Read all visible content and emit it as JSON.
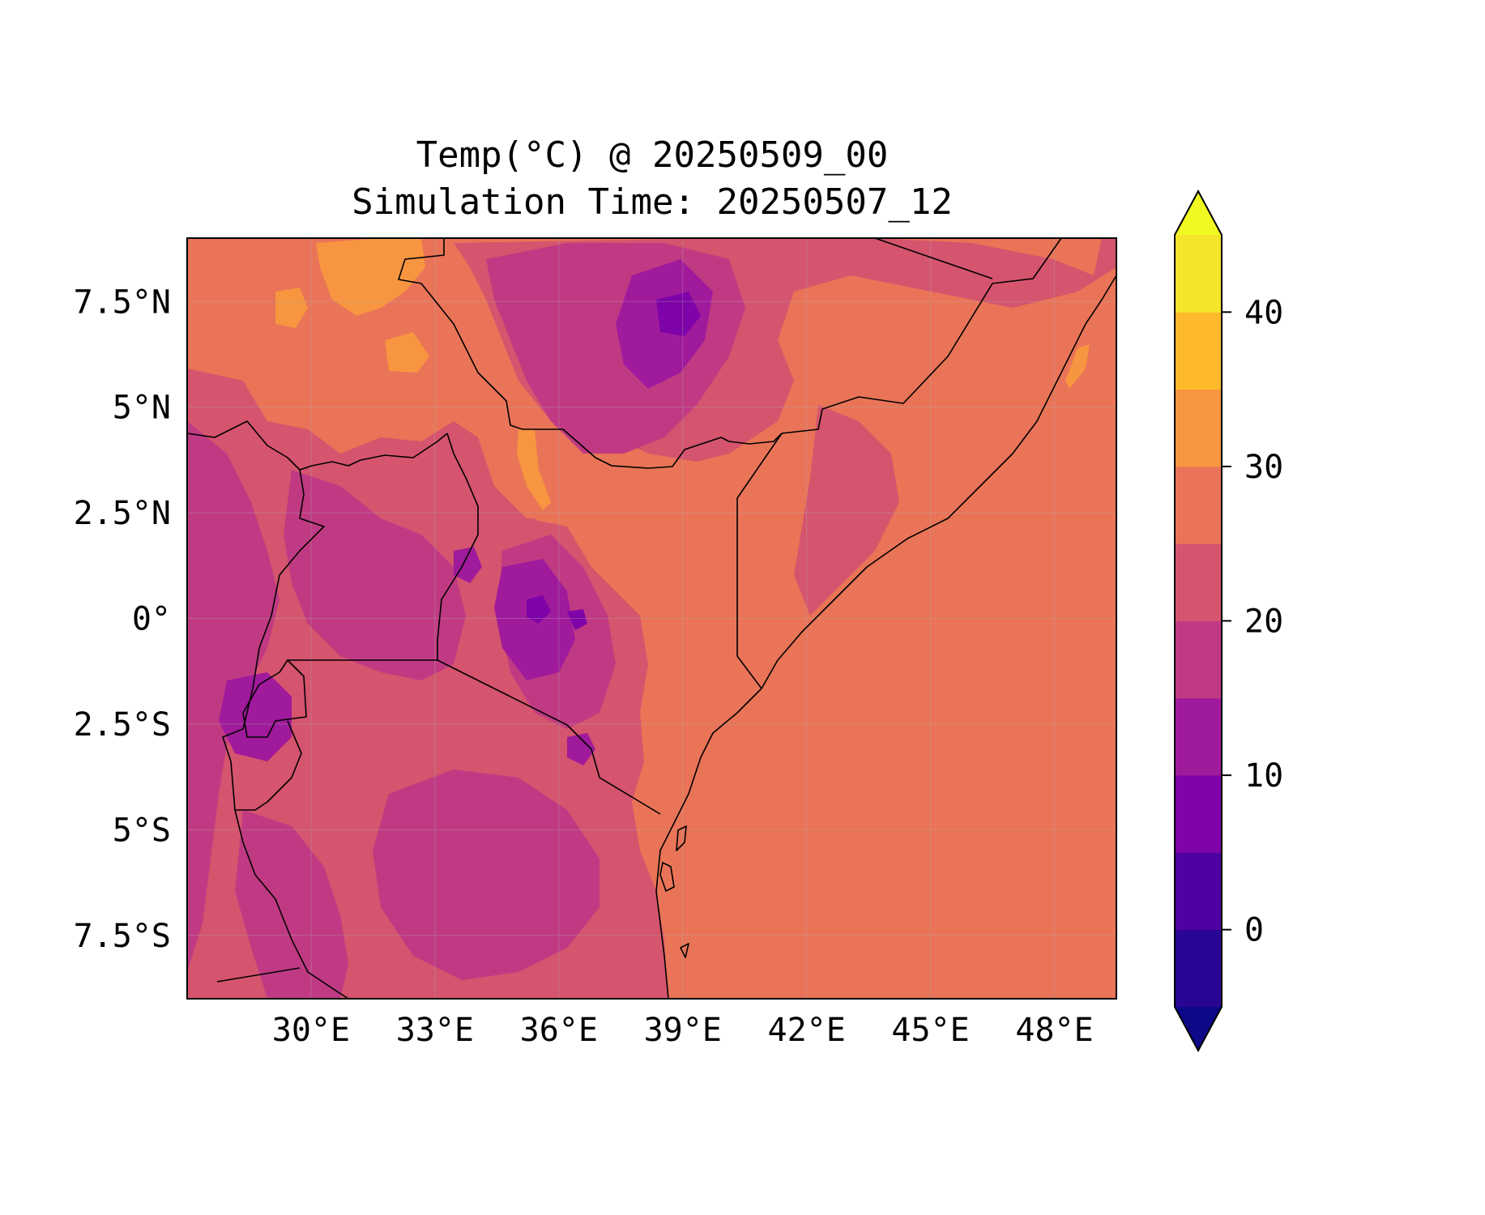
{
  "figure": {
    "title_line1": "Temp(°C) @ 20250509_00",
    "title_line2": "Simulation Time: 20250507_12"
  },
  "map": {
    "lon_range": [
      27.0,
      49.5
    ],
    "lat_range": [
      -9.0,
      9.0
    ],
    "x_ticks": [
      {
        "value": 30,
        "label": "30°E"
      },
      {
        "value": 33,
        "label": "33°E"
      },
      {
        "value": 36,
        "label": "36°E"
      },
      {
        "value": 39,
        "label": "39°E"
      },
      {
        "value": 42,
        "label": "42°E"
      },
      {
        "value": 45,
        "label": "45°E"
      },
      {
        "value": 48,
        "label": "48°E"
      }
    ],
    "y_ticks": [
      {
        "value": 7.5,
        "label": "7.5°N"
      },
      {
        "value": 5,
        "label": "5°N"
      },
      {
        "value": 2.5,
        "label": "2.5°N"
      },
      {
        "value": 0,
        "label": "0°"
      },
      {
        "value": -2.5,
        "label": "2.5°S"
      },
      {
        "value": -5,
        "label": "5°S"
      },
      {
        "value": -7.5,
        "label": "7.5°S"
      }
    ],
    "gridlines": true,
    "base_color": "#e97457",
    "ocean_value_c": 28
  },
  "colorbar": {
    "extend": "both",
    "levels": [
      -5,
      0,
      5,
      10,
      15,
      20,
      25,
      30,
      35,
      40,
      45
    ],
    "colors": [
      "#2a0593",
      "#4e02a2",
      "#7e03a8",
      "#a01a9c",
      "#c03a83",
      "#d5546e",
      "#e97457",
      "#f89540",
      "#feba2c",
      "#f4e42a"
    ],
    "under_color": "#0d0887",
    "over_color": "#f0f921",
    "ticks": [
      {
        "value": 0,
        "label": "0"
      },
      {
        "value": 10,
        "label": "10"
      },
      {
        "value": 20,
        "label": "20"
      },
      {
        "value": 30,
        "label": "30"
      },
      {
        "value": 40,
        "label": "40"
      }
    ]
  }
}
